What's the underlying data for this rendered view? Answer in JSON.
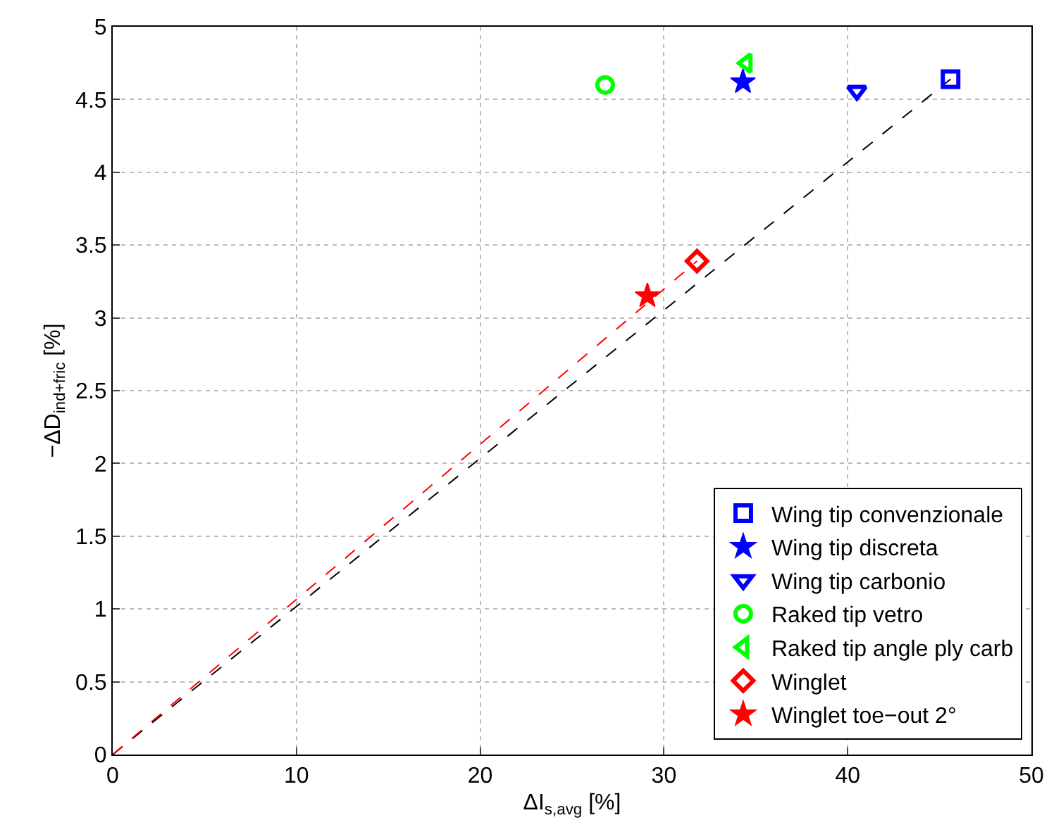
{
  "chart_data": {
    "type": "scatter",
    "xlabel": "ΔI$_{s,avg}$ [%]",
    "ylabel": "−ΔD$_{ind+fric}$ [%]",
    "xlim": [
      0,
      50
    ],
    "ylim": [
      0,
      5
    ],
    "xticks": [
      0,
      10,
      20,
      30,
      40,
      50
    ],
    "yticks": [
      0,
      0.5,
      1,
      1.5,
      2,
      2.5,
      3,
      3.5,
      4,
      4.5,
      5
    ],
    "grid": true,
    "legend": "bottom right",
    "series": [
      {
        "type": "line",
        "color": "#000000",
        "line_style": "dashed",
        "marker": "none",
        "x": [
          0,
          45.6
        ],
        "values": [
          0,
          4.64
        ]
      },
      {
        "type": "line",
        "color": "#ff0000",
        "line_style": "dashed",
        "marker": "none",
        "x": [
          0,
          31.8
        ],
        "values": [
          0,
          3.39
        ]
      },
      {
        "name": "Wing tip convenzionale",
        "color": "#0000ff",
        "marker": "square",
        "x": [
          45.6
        ],
        "values": [
          4.64
        ]
      },
      {
        "name": "Wing tip discreta",
        "color": "#0000ff",
        "marker": "star",
        "x": [
          34.3
        ],
        "values": [
          4.62
        ]
      },
      {
        "name": "Wing tip carbonio",
        "color": "#0000ff",
        "marker": "triangle-down",
        "x": [
          40.5
        ],
        "values": [
          4.56
        ]
      },
      {
        "name": "Raked tip vetro",
        "color": "#00ff00",
        "marker": "circle",
        "x": [
          26.8
        ],
        "values": [
          4.6
        ]
      },
      {
        "name": "Raked tip angle ply carb",
        "color": "#00ff00",
        "marker": "triangle-left",
        "x": [
          34.5
        ],
        "values": [
          4.75
        ]
      },
      {
        "name": "Winglet",
        "color": "#ff0000",
        "marker": "diamond",
        "x": [
          31.8
        ],
        "values": [
          3.39
        ]
      },
      {
        "name": "Winglet toe−out 2°",
        "color": "#ff0000",
        "marker": "star",
        "x": [
          29.1
        ],
        "values": [
          3.15
        ]
      }
    ]
  }
}
